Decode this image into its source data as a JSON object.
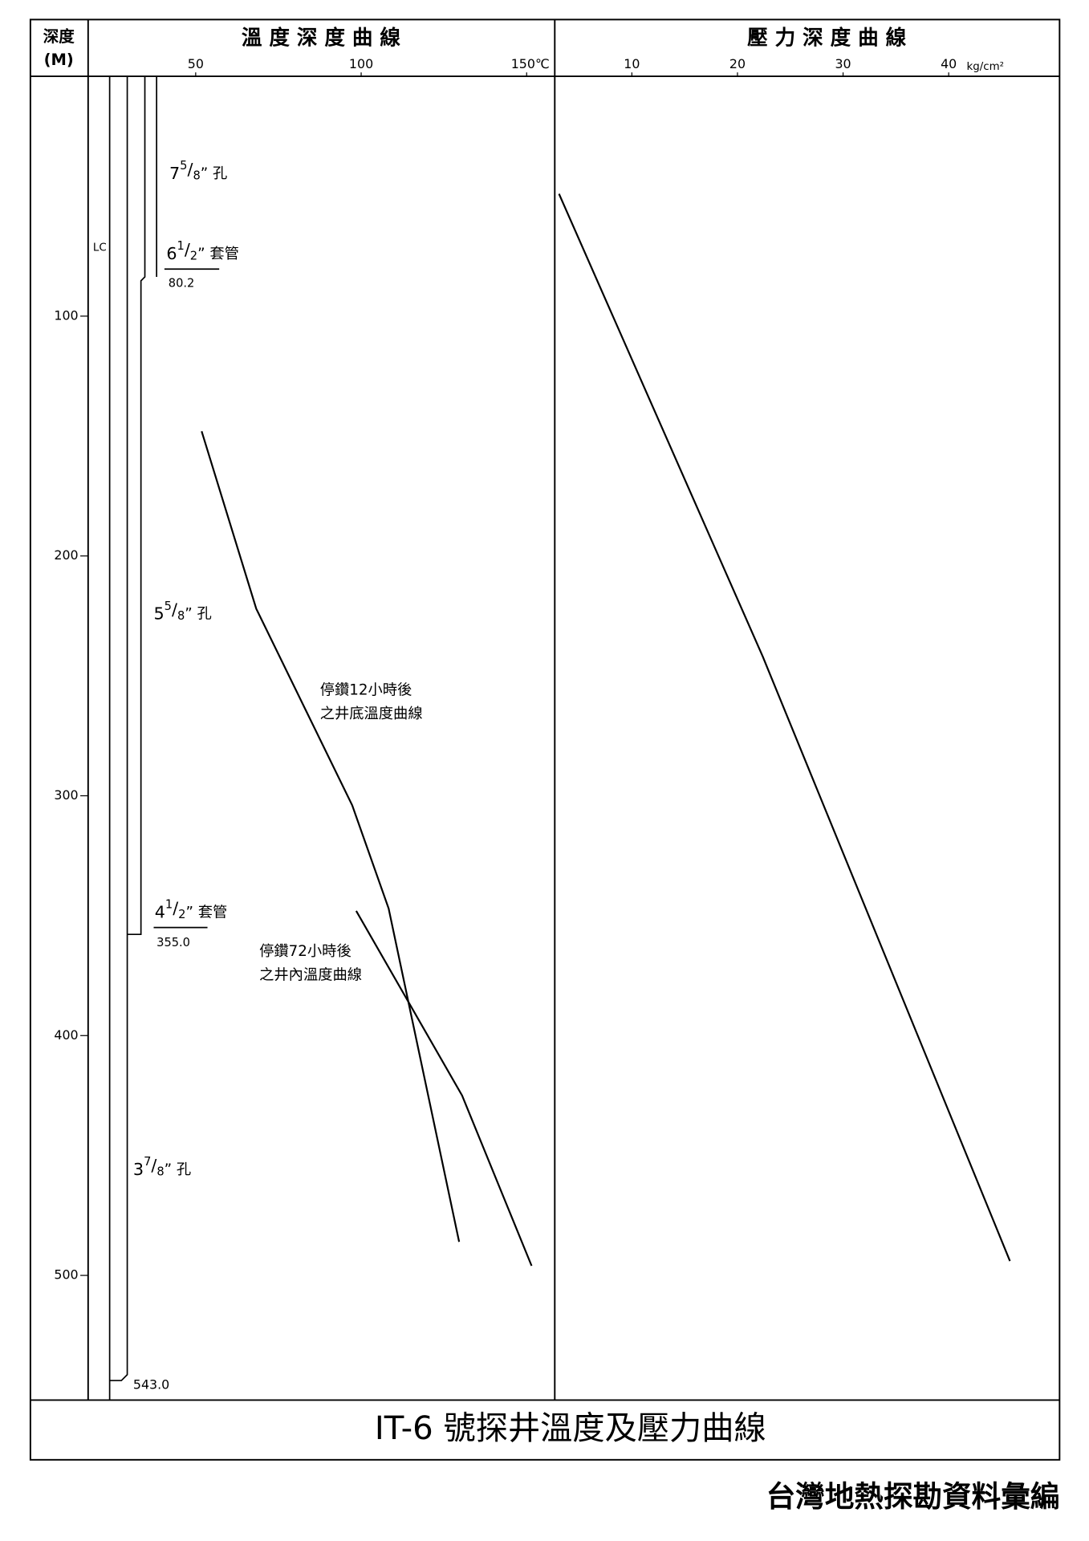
{
  "chart_data": [
    {
      "type": "line",
      "title": "溫 度 深 度 曲 線",
      "y_axis_label": [
        "深度",
        "(M)"
      ],
      "xlim": [
        17.5,
        158.5
      ],
      "xticks": [
        50,
        100,
        {
          "value": 150,
          "label": "150℃"
        }
      ],
      "ylim": [
        0,
        552
      ],
      "yticks": [
        100,
        200,
        300,
        400,
        500
      ],
      "y_inverted": true,
      "color": "#000000",
      "series": [
        {
          "label": [
            "停鑽12小時後",
            "之井底溫度曲線"
          ],
          "x": [
            51.8,
            68.3,
            97.3,
            108.3,
            129.6
          ],
          "values": [
            148,
            222,
            304,
            347,
            486
          ]
        },
        {
          "label": [
            "停鑽72小時後",
            "之井內溫度曲線"
          ],
          "x": [
            98.5,
            130.5,
            151.5
          ],
          "values": [
            348,
            425,
            496
          ]
        }
      ]
    },
    {
      "type": "line",
      "title": "壓 力 深 度 曲 線",
      "x_unit": "kg/cm²",
      "xlim": [
        2.7,
        50.5
      ],
      "xticks": [
        10,
        20,
        30,
        40
      ],
      "ylim": [
        0,
        552
      ],
      "y_inverted": true,
      "color": "#000000",
      "series": [
        {
          "x": [
            3.1,
            22.4,
            45.8
          ],
          "values": [
            49,
            242,
            494
          ]
        }
      ]
    }
  ],
  "well": {
    "lc": "LC",
    "notes": [
      {
        "whole": "7",
        "num": "5",
        "sep": "/",
        "den": "8",
        "suffix": "” 孔"
      },
      {
        "whole": "6",
        "num": "1",
        "sep": "/",
        "den": "2",
        "suffix": "” 套管",
        "depth": "80.2"
      },
      {
        "whole": "5",
        "num": "5",
        "sep": "/",
        "den": "8",
        "suffix": "” 孔"
      },
      {
        "whole": "4",
        "num": "1",
        "sep": "/",
        "den": "2",
        "suffix": "” 套管",
        "depth": "355.0"
      },
      {
        "whole": "3",
        "num": "7",
        "sep": "/",
        "den": "8",
        "suffix": "” 孔"
      }
    ],
    "bottom": "543.0"
  },
  "title": "IT-6 號探井溫度及壓力曲線",
  "footer": "台灣地熱探勘資料彙編"
}
